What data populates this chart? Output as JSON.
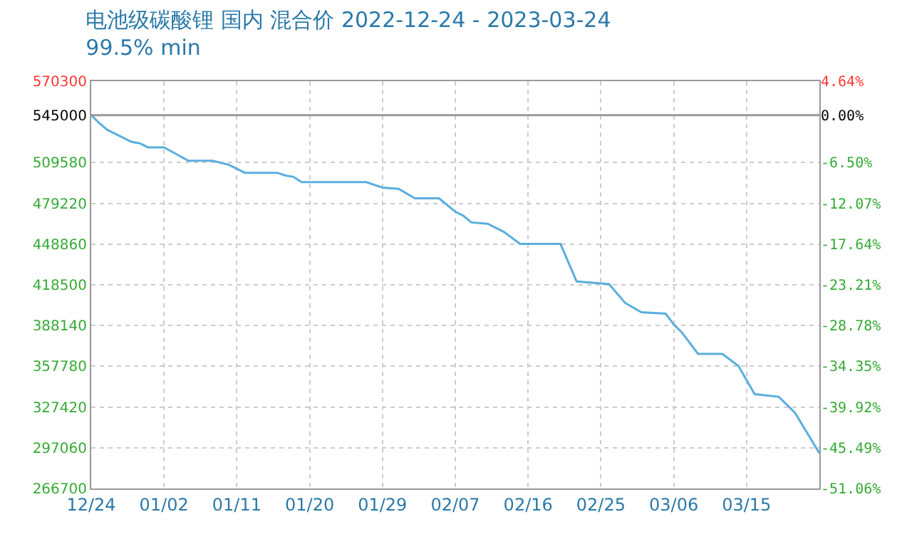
{
  "chart_data": {
    "type": "line",
    "title": "电池级碳酸锂 国内 混合价 2022-12-24 - 2023-03-24",
    "subtitle": "99.5% min",
    "x": [
      "2022-12-24",
      "2022-12-25",
      "2022-12-26",
      "2022-12-29",
      "2022-12-30",
      "2022-12-31",
      "2023-01-02",
      "2023-01-05",
      "2023-01-08",
      "2023-01-10",
      "2023-01-12",
      "2023-01-16",
      "2023-01-17",
      "2023-01-18",
      "2023-01-19",
      "2023-01-27",
      "2023-01-29",
      "2023-01-31",
      "2023-02-02",
      "2023-02-05",
      "2023-02-07",
      "2023-02-08",
      "2023-02-09",
      "2023-02-11",
      "2023-02-13",
      "2023-02-15",
      "2023-02-20",
      "2023-02-22",
      "2023-02-26",
      "2023-02-28",
      "2023-03-02",
      "2023-03-05",
      "2023-03-06",
      "2023-03-07",
      "2023-03-09",
      "2023-03-12",
      "2023-03-14",
      "2023-03-16",
      "2023-03-19",
      "2023-03-21",
      "2023-03-24"
    ],
    "series": [
      {
        "color": "#5aaede",
        "values": [
          545000,
          539000,
          534000,
          525000,
          524000,
          521000,
          521000,
          511000,
          511000,
          508000,
          502000,
          502000,
          500000,
          499000,
          495000,
          495000,
          491000,
          490000,
          483000,
          483000,
          473000,
          470000,
          465000,
          464000,
          458000,
          449000,
          449000,
          421000,
          419000,
          405000,
          398000,
          397000,
          389000,
          383000,
          367000,
          367000,
          358000,
          337000,
          335000,
          323000,
          293000
        ]
      }
    ],
    "xlim": [
      "2022-12-24",
      "2023-03-24"
    ],
    "xticks": [
      {
        "value": "2022-12-24",
        "label": "12/24"
      },
      {
        "value": "2023-01-02",
        "label": "01/02"
      },
      {
        "value": "2023-01-11",
        "label": "01/11"
      },
      {
        "value": "2023-01-20",
        "label": "01/20"
      },
      {
        "value": "2023-01-29",
        "label": "01/29"
      },
      {
        "value": "2023-02-07",
        "label": "02/07"
      },
      {
        "value": "2023-02-16",
        "label": "02/16"
      },
      {
        "value": "2023-02-25",
        "label": "02/25"
      },
      {
        "value": "2023-03-06",
        "label": "03/06"
      },
      {
        "value": "2023-03-15",
        "label": "03/15"
      }
    ],
    "ylim": [
      266700,
      570300
    ],
    "yticks": [
      266700,
      297060,
      327420,
      357780,
      388140,
      418500,
      448860,
      479220,
      509580,
      545000,
      570300
    ],
    "y2lim": [
      -51.06,
      4.64
    ],
    "y2ticks": [
      {
        "value": -51.06,
        "label": "-51.06%"
      },
      {
        "value": -45.49,
        "label": "-45.49%"
      },
      {
        "value": -39.92,
        "label": "-39.92%"
      },
      {
        "value": -34.35,
        "label": "-34.35%"
      },
      {
        "value": -28.78,
        "label": "-28.78%"
      },
      {
        "value": -23.21,
        "label": "-23.21%"
      },
      {
        "value": -17.64,
        "label": "-17.64%"
      },
      {
        "value": -12.07,
        "label": "-12.07%"
      },
      {
        "value": -6.5,
        "label": "-6.50%"
      },
      {
        "value": 0,
        "label": "0.00%"
      },
      {
        "value": 4.64,
        "label": "4.64%"
      }
    ],
    "ref_lines": [
      {
        "axis": "y",
        "value": 545000,
        "color": "#999999"
      }
    ],
    "grid": true,
    "marker": "none",
    "line_style": "solid"
  }
}
